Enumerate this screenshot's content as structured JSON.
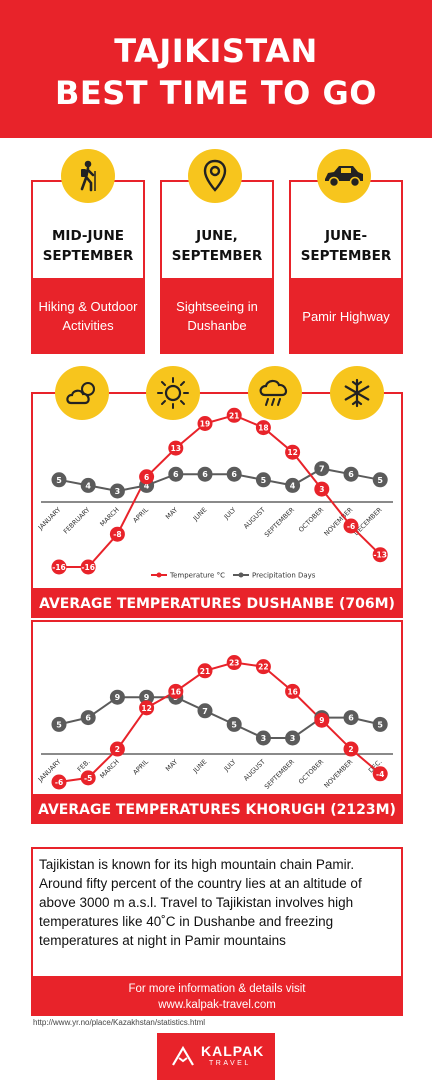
{
  "header": {
    "title_line1": "TAJIKISTAN",
    "title_line2": "BEST TIME TO GO"
  },
  "cards": [
    {
      "icon": "hiker-icon",
      "line1": "MID-JUNE",
      "line2": "SEPTEMBER",
      "activity": "Hiking & Outdoor Activities"
    },
    {
      "icon": "location-pin-icon",
      "line1": "JUNE,",
      "line2": "SEPTEMBER",
      "activity": "Sightseeing in Dushanbe"
    },
    {
      "icon": "car-icon",
      "line1": "JUNE-",
      "line2": "SEPTEMBER",
      "activity": "Pamir Highway"
    }
  ],
  "weather_icons": [
    "cloud-sun-icon",
    "sun-icon",
    "rain-cloud-icon",
    "snowflake-icon"
  ],
  "colors": {
    "accent": "#e8232a",
    "icon_yellow": "#f7c51d",
    "precip_gray": "#5b5b5b"
  },
  "chart_data": [
    {
      "type": "line",
      "title": "AVERAGE TEMPERATURES DUSHANBE (706M)",
      "categories": [
        "JANUARY",
        "FEBRUARY",
        "MARCH",
        "APRIL",
        "MAY",
        "JUNE",
        "JULY",
        "AUGUST",
        "SEPTEMBER",
        "OCTOBER",
        "NOVEMBER",
        "DECEMBER"
      ],
      "series": [
        {
          "name": "Temperature °C",
          "color": "#e8232a",
          "values": [
            -16,
            -16,
            -8,
            6,
            13,
            19,
            21,
            18,
            12,
            3,
            -6,
            -13
          ]
        },
        {
          "name": "Precipitation Days",
          "color": "#5b5b5b",
          "values": [
            5,
            4,
            3,
            4,
            6,
            6,
            6,
            5,
            4,
            7,
            6,
            5
          ]
        }
      ],
      "legend": "bottom-center"
    },
    {
      "type": "line",
      "title": "AVERAGE TEMPERATURES KHORUGH (2123M)",
      "categories": [
        "JANUARY",
        "FEB.",
        "MARCH",
        "APRIL",
        "MAY",
        "JUNE",
        "JULY",
        "AUGUST",
        "SEPTEMBER",
        "OCTOBER",
        "NOVEMBER",
        "DEC."
      ],
      "series": [
        {
          "name": "Temperature",
          "color": "#e8232a",
          "values": [
            -6,
            -5,
            2,
            12,
            16,
            21,
            23,
            22,
            16,
            9,
            2,
            -4
          ]
        },
        {
          "name": "Precipitation Days",
          "color": "#5b5b5b",
          "values": [
            5,
            6,
            9,
            9,
            9,
            7,
            5,
            3,
            3,
            6,
            6,
            5
          ]
        }
      ]
    }
  ],
  "description": "Tajikistan is known for its high mountain chain Pamir. Around fifty percent of the country lies at an altitude of above 3000 m a.s.l. Travel to Tajikistan involves high temperatures like 40˚C in Dushanbe and freezing temperatures at night in Pamir mountains",
  "footer": {
    "info_line1": "For more information & details visit",
    "info_line2": "www.kalpak-travel.com",
    "source": "http://www.yr.no/place/Kazakhstan/statistics.html",
    "logo_name": "KALPAK",
    "logo_sub": "TRAVEL"
  }
}
